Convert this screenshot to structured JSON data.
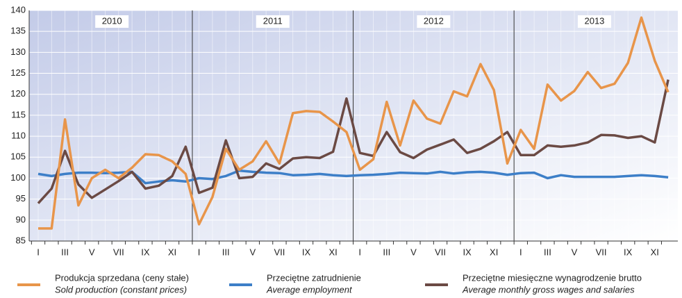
{
  "chart_data": {
    "type": "line",
    "categories": [
      "I",
      null,
      "III",
      null,
      "V",
      null,
      "VII",
      null,
      "IX",
      null,
      "XI",
      null,
      "I",
      null,
      "III",
      null,
      "V",
      null,
      "VII",
      null,
      "IX",
      null,
      "XI",
      null,
      "I",
      null,
      "III",
      null,
      "V",
      null,
      "VII",
      null,
      "IX",
      null,
      "XI",
      null,
      "I",
      null,
      "III",
      null,
      "V",
      null,
      "VII",
      null,
      "IX",
      null,
      "XI",
      null
    ],
    "years": [
      "2010",
      "2011",
      "2012",
      "2013"
    ],
    "ylim": [
      85,
      140
    ],
    "yticks": [
      85,
      90,
      95,
      100,
      105,
      110,
      115,
      120,
      125,
      130,
      135,
      140
    ],
    "grid": true,
    "series": [
      {
        "name": "Produkcja sprzedana (ceny stałe)",
        "name_en": "Sold production (constant prices)",
        "color": "#e8954a",
        "values": [
          88,
          88,
          114,
          93.5,
          100,
          102,
          100,
          102.5,
          105.7,
          105.5,
          104,
          101,
          89,
          95.5,
          107,
          102,
          104,
          108.8,
          103.5,
          115.5,
          116,
          115.8,
          113.5,
          111,
          102,
          104.5,
          118.2,
          107.8,
          118.5,
          114.2,
          113,
          120.7,
          119.5,
          127.2,
          121,
          103.5,
          111.5,
          107,
          122.3,
          118.5,
          120.8,
          125.3,
          121.5,
          122.5,
          127.5,
          138.3,
          128,
          120.5
        ]
      },
      {
        "name": "Przeciętne zatrudnienie",
        "name_en": "Average employment",
        "color": "#3d7fc8",
        "values": [
          101,
          100.5,
          101,
          101.3,
          101.3,
          101.2,
          101.3,
          101.5,
          98.8,
          99.2,
          99.5,
          99.2,
          100,
          99.8,
          100.5,
          101.8,
          101.5,
          101.3,
          101.2,
          100.7,
          100.8,
          101,
          100.7,
          100.5,
          100.7,
          100.8,
          101,
          101.3,
          101.2,
          101.1,
          101.5,
          101.1,
          101.4,
          101.5,
          101.3,
          100.8,
          101.2,
          101.3,
          100,
          100.7,
          100.3,
          100.3,
          100.3,
          100.3,
          100.5,
          100.7,
          100.5,
          100.2
        ]
      },
      {
        "name": "Przeciętne miesięczne wynagrodzenie brutto",
        "name_en": "Average monthly gross wages and salaries",
        "color": "#6b4a44",
        "values": [
          94,
          97.5,
          106.5,
          98.5,
          95.3,
          97.3,
          99.3,
          101.5,
          97.5,
          98.2,
          100.5,
          107.5,
          96.5,
          97.7,
          109,
          100,
          100.3,
          103.5,
          102.2,
          104.7,
          105,
          104.8,
          106.3,
          119,
          106,
          105.3,
          111,
          106.2,
          104.8,
          106.8,
          108,
          109.2,
          106,
          107,
          108.8,
          111,
          105.5,
          105.5,
          107.8,
          107.5,
          107.8,
          108.5,
          110.3,
          110.2,
          109.6,
          110,
          108.5,
          123.5
        ]
      }
    ]
  }
}
